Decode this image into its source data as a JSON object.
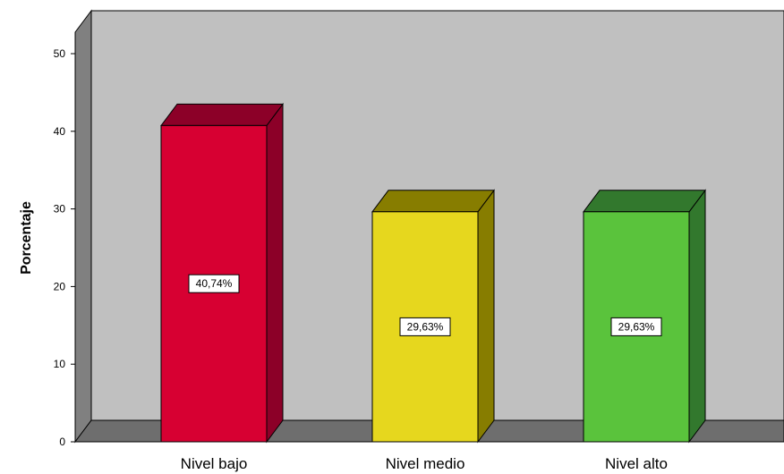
{
  "chart_data": {
    "type": "bar",
    "title": "",
    "xlabel": "",
    "ylabel": "Porcentaje",
    "ylim": [
      0,
      50
    ],
    "yticks": [
      0,
      10,
      20,
      30,
      40,
      50
    ],
    "grid": false,
    "style": "3d",
    "categories": [
      "Nivel bajo",
      "Nivel medio",
      "Nivel alto"
    ],
    "values": [
      40.74,
      29.63,
      29.63
    ],
    "data_labels": [
      "40,74%",
      "29,63%",
      "29,63%"
    ],
    "colors": [
      "#d70032",
      "#e6d71e",
      "#5ac33c"
    ],
    "side_colors": [
      "#8c0028",
      "#877d00",
      "#32782d"
    ]
  },
  "colors": {
    "plot_back": "#c0c0c0",
    "plot_side_wall": "#808080",
    "plot_floor": "#6e6e6e"
  }
}
